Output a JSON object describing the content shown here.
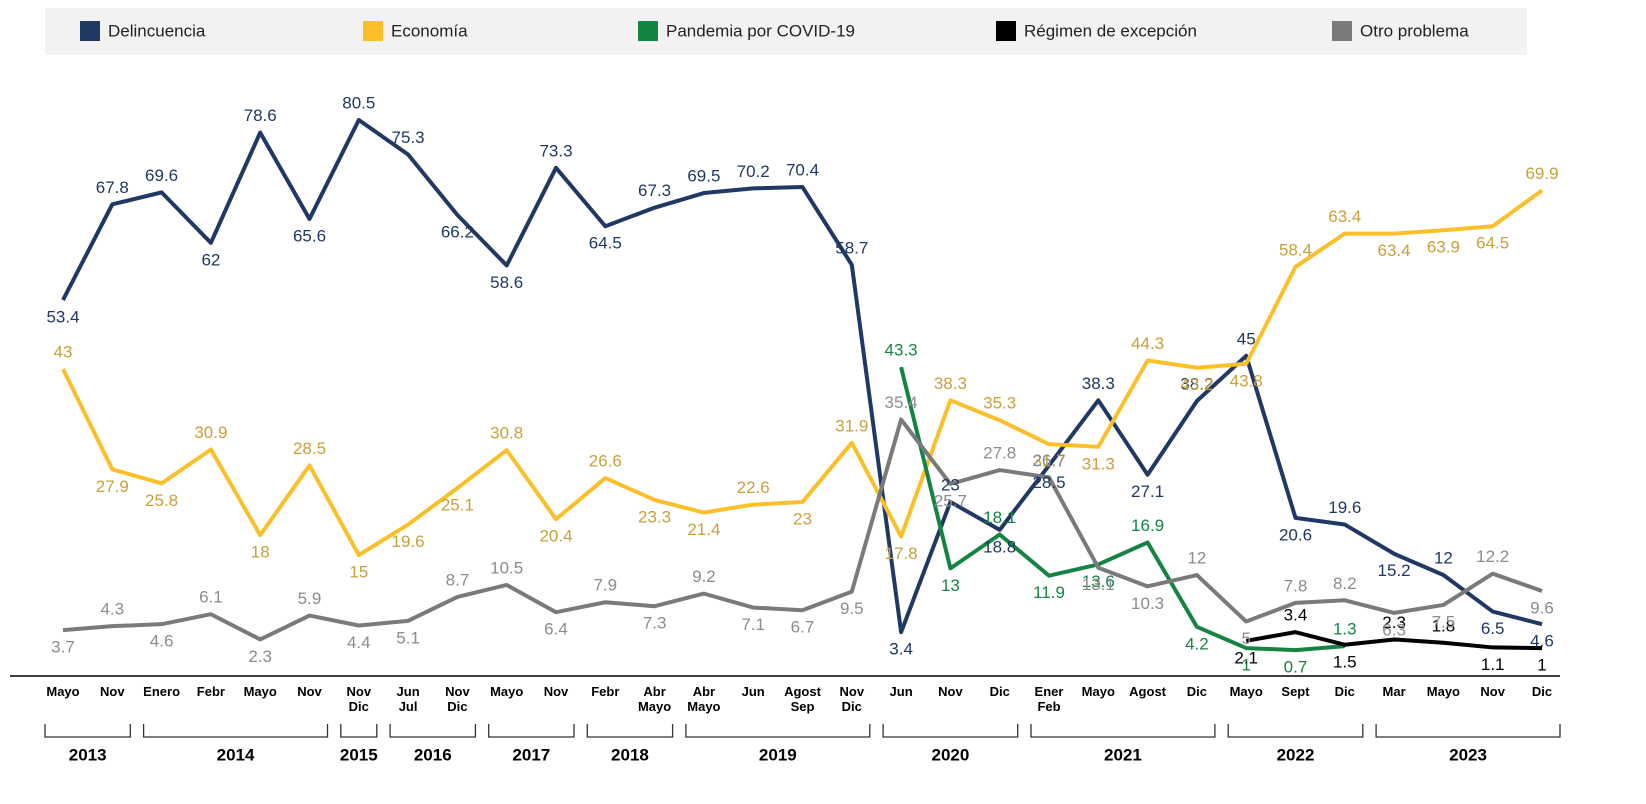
{
  "chart_data": {
    "type": "line",
    "legend": [
      "Delincuencia",
      "Economía",
      "Pandemia por COVID-19",
      "Régimen de excepción",
      "Otro problema"
    ],
    "category_groups": [
      {
        "name": "2013",
        "categories": [
          "Mayo",
          "Nov"
        ]
      },
      {
        "name": "2014",
        "categories": [
          "Enero",
          "Febr",
          "Mayo",
          "Nov"
        ]
      },
      {
        "name": "2015",
        "categories": [
          "Nov\nDic"
        ]
      },
      {
        "name": "2016",
        "categories": [
          "Jun\nJul",
          "Nov\nDic"
        ]
      },
      {
        "name": "2017",
        "categories": [
          "Mayo",
          "Nov"
        ]
      },
      {
        "name": "2018",
        "categories": [
          "Febr",
          "Abr\nMayo"
        ]
      },
      {
        "name": "2019",
        "categories": [
          "Abr\nMayo",
          "Jun",
          "Agost\nSep",
          "Nov\nDic"
        ]
      },
      {
        "name": "2020",
        "categories": [
          "Jun",
          "Nov",
          "Dic"
        ]
      },
      {
        "name": "2021",
        "categories": [
          "Ener\nFeb",
          "Mayo",
          "Agost",
          "Dic"
        ]
      },
      {
        "name": "2022",
        "categories": [
          "Mayo",
          "Sept",
          "Dic"
        ]
      },
      {
        "name": "2023",
        "categories": [
          "Mar",
          "Mayo",
          "Nov",
          "Dic"
        ]
      }
    ],
    "ylim": [
      -3.2,
      82
    ],
    "series": [
      {
        "name": "Delincuencia",
        "color": "#1f3864",
        "label_color": "#1f3864",
        "values": [
          53.4,
          67.8,
          69.6,
          62,
          78.6,
          65.6,
          80.5,
          75.3,
          66.2,
          58.6,
          73.3,
          64.5,
          67.3,
          69.5,
          70.2,
          70.4,
          58.7,
          3.4,
          23,
          18.8,
          28.5,
          38.3,
          27.1,
          38.2,
          45,
          20.6,
          19.6,
          15.2,
          12,
          6.5,
          4.6
        ]
      },
      {
        "name": "Economía",
        "color": "#fbbf2a",
        "label_color": "#c9a03a",
        "values": [
          43,
          27.9,
          25.8,
          30.9,
          18,
          28.5,
          15,
          19.6,
          25.1,
          30.8,
          20.4,
          26.6,
          23.3,
          21.4,
          22.6,
          23,
          31.9,
          17.8,
          38.3,
          35.3,
          31.7,
          31.3,
          44.3,
          43.2,
          43.8,
          58.4,
          63.4,
          63.4,
          63.9,
          64.5,
          69.9
        ]
      },
      {
        "name": "Pandemia por COVID-19",
        "color": "#158443",
        "label_color": "#158443",
        "values": [
          null,
          null,
          null,
          null,
          null,
          null,
          null,
          null,
          null,
          null,
          null,
          null,
          null,
          null,
          null,
          null,
          null,
          43.3,
          13,
          18.1,
          11.9,
          13.6,
          16.9,
          4.2,
          1,
          0.7,
          1.3,
          null,
          null,
          null,
          null
        ]
      },
      {
        "name": "Régimen de excepción",
        "color": "#000000",
        "label_color": "#000000",
        "values": [
          null,
          null,
          null,
          null,
          null,
          null,
          null,
          null,
          null,
          null,
          null,
          null,
          null,
          null,
          null,
          null,
          null,
          null,
          null,
          null,
          null,
          null,
          null,
          null,
          2.1,
          3.4,
          1.5,
          2.3,
          1.8,
          1.1,
          1
        ]
      },
      {
        "name": "Otro problema",
        "color": "#7a7a7a",
        "label_color": "#8c8c8c",
        "values": [
          3.7,
          4.3,
          4.6,
          6.1,
          2.3,
          5.9,
          4.4,
          5.1,
          8.7,
          10.5,
          6.4,
          7.9,
          7.3,
          9.2,
          7.1,
          6.7,
          9.5,
          35.4,
          25.7,
          27.8,
          26.7,
          13.1,
          10.3,
          12,
          5,
          7.8,
          8.2,
          6.3,
          7.5,
          12.2,
          9.6
        ]
      }
    ]
  }
}
